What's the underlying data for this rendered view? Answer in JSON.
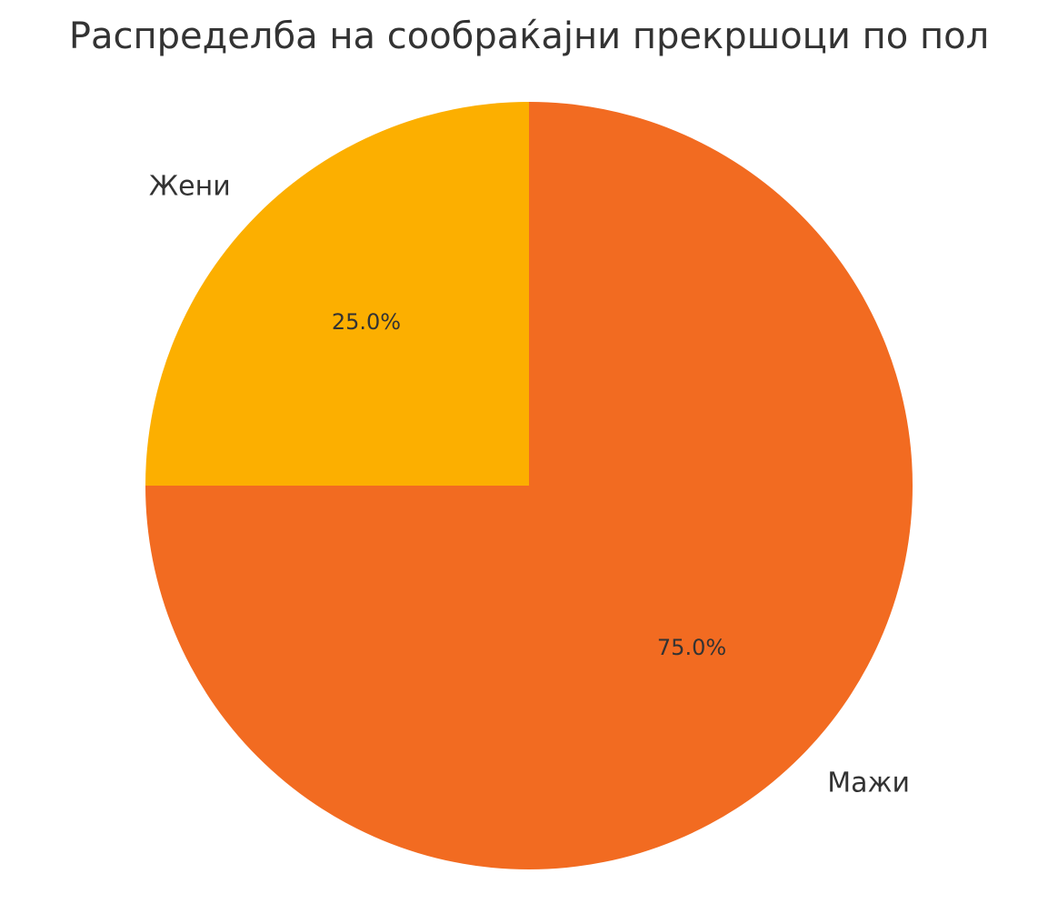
{
  "chart_data": {
    "type": "pie",
    "title": "Распределба на сообраќајни прекршоци по пол",
    "categories": [
      "Мажи",
      "Жени"
    ],
    "values": [
      75,
      25
    ],
    "value_labels": [
      "75.0%",
      "25.0%"
    ],
    "colors": [
      "#f26b21",
      "#fcaf00"
    ]
  }
}
